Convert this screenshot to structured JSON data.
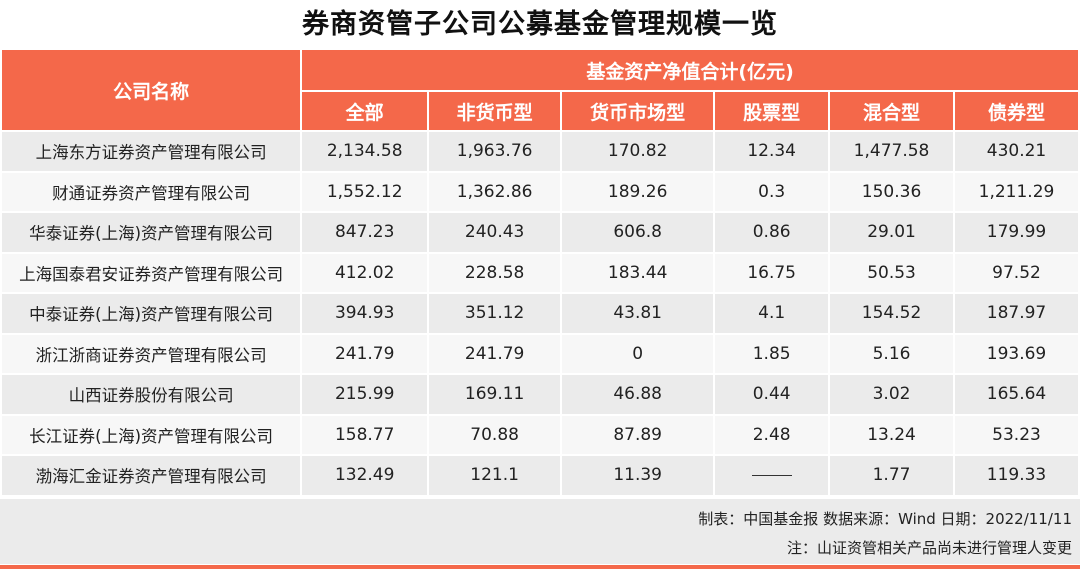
{
  "title": "券商资管子公司公募基金管理规模一览",
  "header": {
    "company": "公司名称",
    "group": "基金资产净值合计(亿元)",
    "columns": [
      "全部",
      "非货币型",
      "货币市场型",
      "股票型",
      "混合型",
      "债券型"
    ]
  },
  "rows": [
    {
      "name": "上海东方证券资产管理有限公司",
      "values": [
        "2,134.58",
        "1,963.76",
        "170.82",
        "12.34",
        "1,477.58",
        "430.21"
      ]
    },
    {
      "name": "财通证券资产管理有限公司",
      "values": [
        "1,552.12",
        "1,362.86",
        "189.26",
        "0.3",
        "150.36",
        "1,211.29"
      ]
    },
    {
      "name": "华泰证券(上海)资产管理有限公司",
      "values": [
        "847.23",
        "240.43",
        "606.8",
        "0.86",
        "29.01",
        "179.99"
      ]
    },
    {
      "name": "上海国泰君安证券资产管理有限公司",
      "values": [
        "412.02",
        "228.58",
        "183.44",
        "16.75",
        "50.53",
        "97.52"
      ]
    },
    {
      "name": "中泰证券(上海)资产管理有限公司",
      "values": [
        "394.93",
        "351.12",
        "43.81",
        "4.1",
        "154.52",
        "187.97"
      ]
    },
    {
      "name": "浙江浙商证券资产管理有限公司",
      "values": [
        "241.79",
        "241.79",
        "0",
        "1.85",
        "5.16",
        "193.69"
      ]
    },
    {
      "name": "山西证券股份有限公司",
      "values": [
        "215.99",
        "169.11",
        "46.88",
        "0.44",
        "3.02",
        "165.64"
      ]
    },
    {
      "name": "长江证券(上海)资产管理有限公司",
      "values": [
        "158.77",
        "70.88",
        "87.89",
        "2.48",
        "13.24",
        "53.23"
      ]
    },
    {
      "name": "渤海汇金证券资产管理有限公司",
      "values": [
        "132.49",
        "121.1",
        "11.39",
        "",
        "1.77",
        "119.33"
      ]
    }
  ],
  "footer": {
    "source": "制表：中国基金报 数据来源：Wind 日期：2022/11/11",
    "note": "注：山证资管相关产品尚未进行管理人变更"
  },
  "colors": {
    "accent": "#f4684a"
  }
}
